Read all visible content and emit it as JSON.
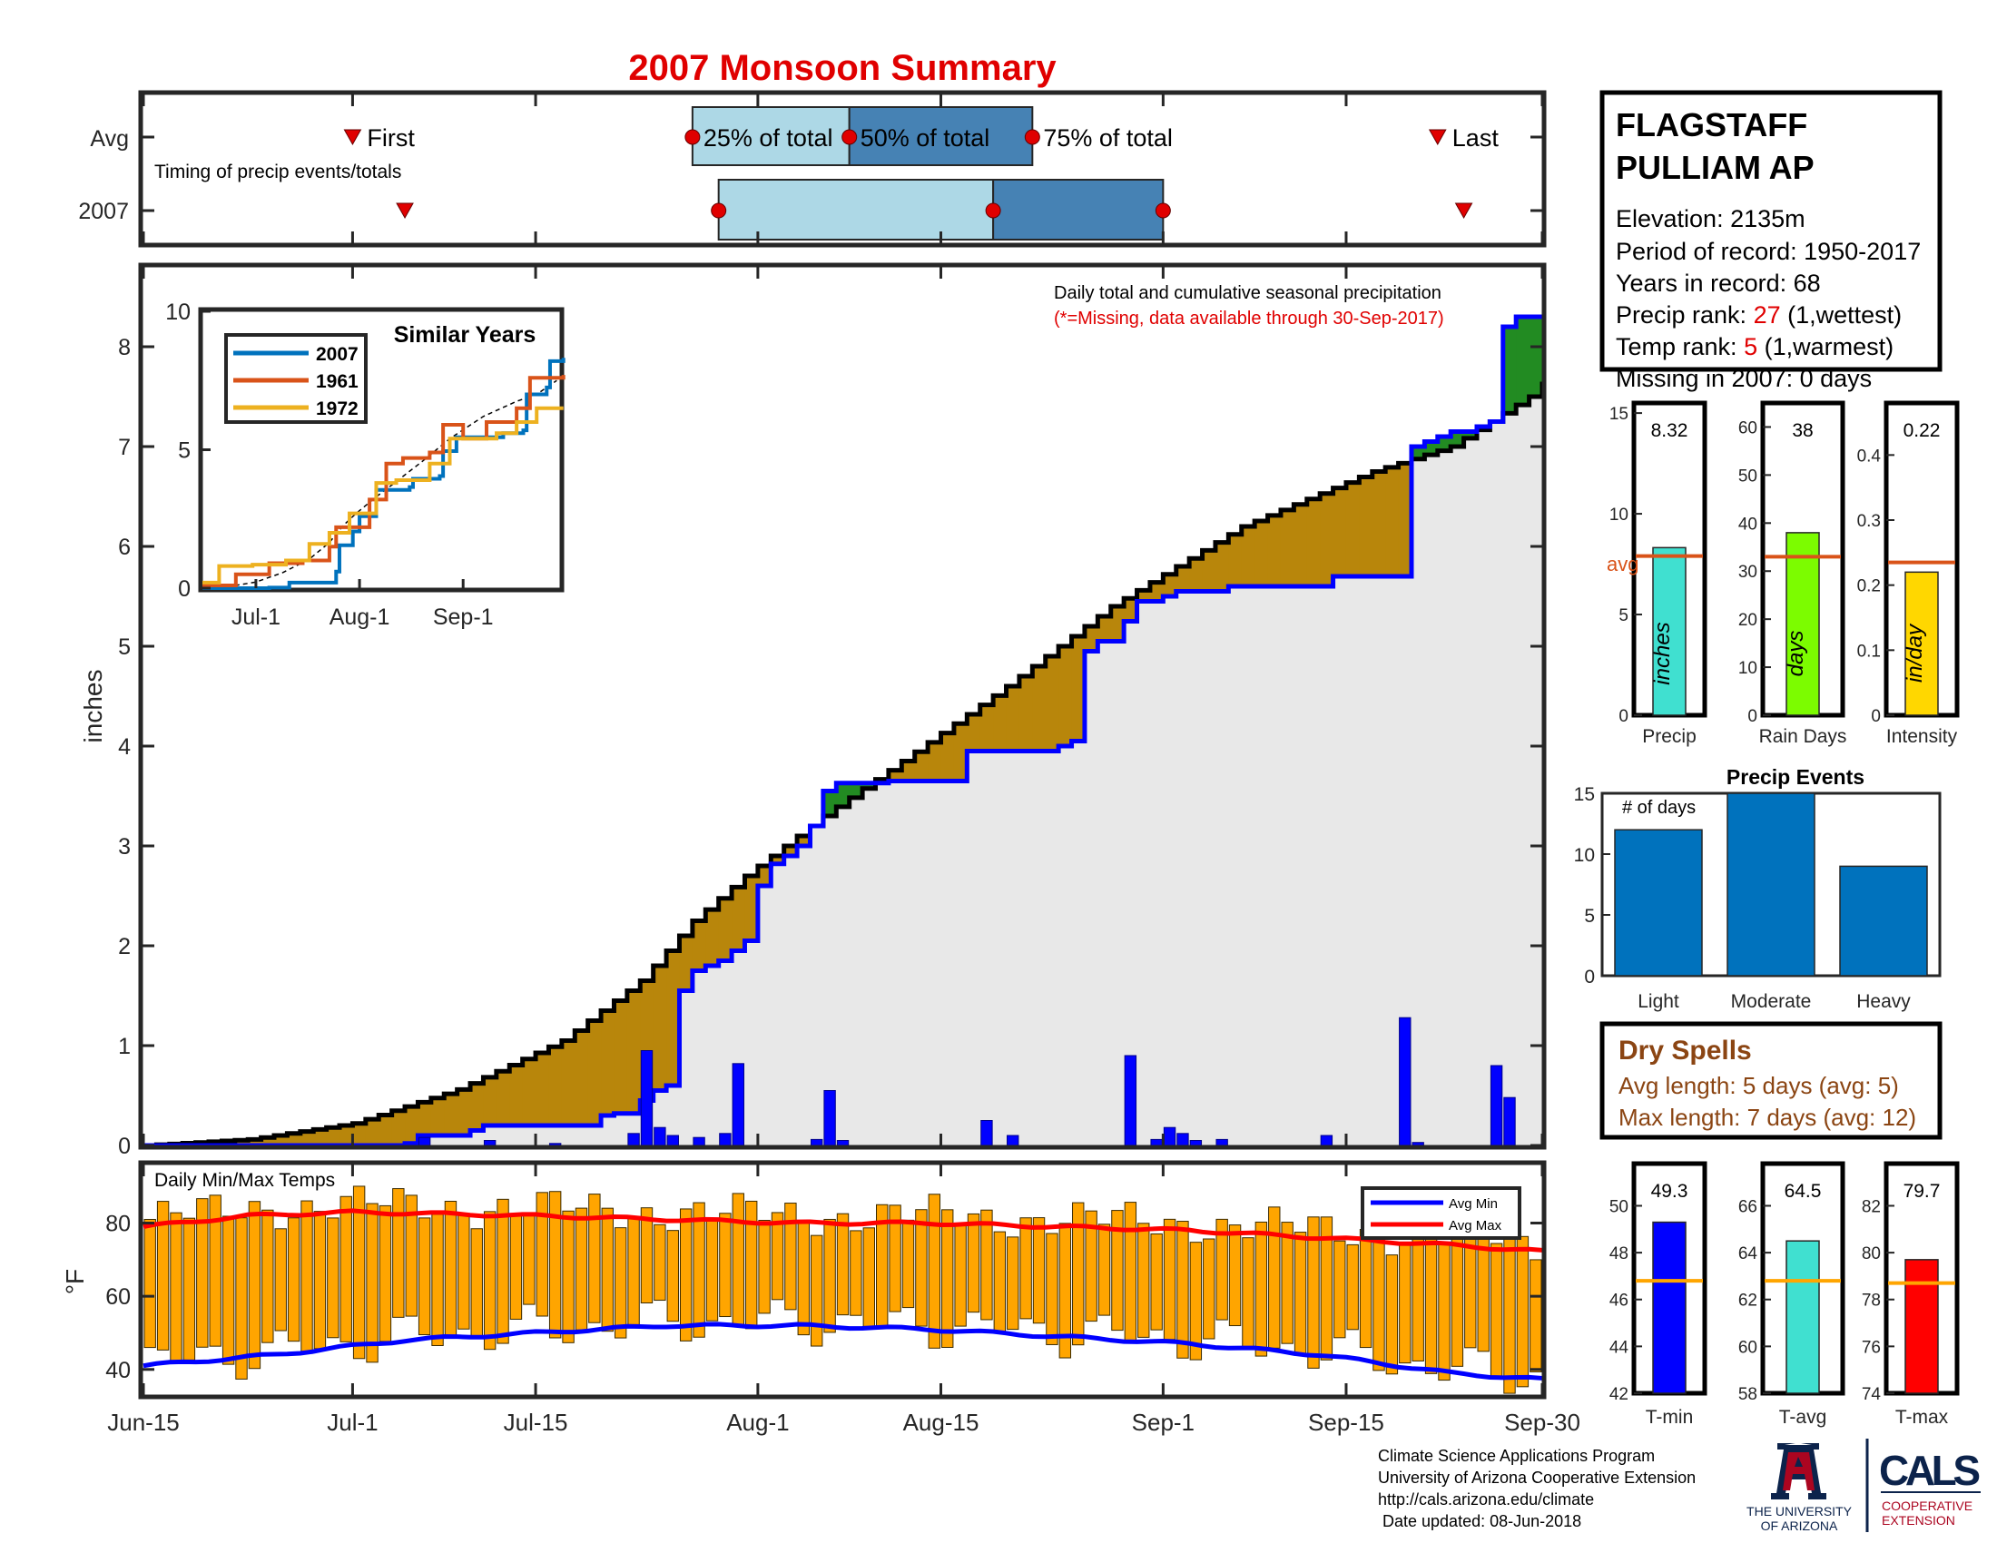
{
  "title": "2007 Monsoon Summary",
  "timing": {
    "row_labels": [
      "Avg",
      "2007"
    ],
    "note": "Timing of precip events/totals",
    "first_label": "First",
    "last_label": "Last",
    "p25_label": "25% of total",
    "p50_label": "50% of total",
    "p75_label": "75% of total",
    "avg": {
      "first": "Jul-01",
      "p25": "Jul-27",
      "p50": "Aug-08",
      "p75": "Aug-22",
      "last": "Sep-22"
    },
    "y2007": {
      "first": "Jul-05",
      "p25": "Jul-29",
      "p50": "Aug-19",
      "p75": "Sep-01",
      "last": "Sep-24"
    },
    "colors": {
      "light": "#add8e6",
      "dark": "#4682b4",
      "marker": "#e00000"
    }
  },
  "station": {
    "name_line1": "FLAGSTAFF",
    "name_line2": "PULLIAM AP",
    "elevation": "Elevation: 2135m",
    "period": "Period of record: 1950-2017",
    "years": "Years in record: 68",
    "precip_rank_label": "Precip rank:",
    "precip_rank_value": "27",
    "precip_rank_note": "(1,wettest)",
    "temp_rank_label": "Temp rank:",
    "temp_rank_value": "5",
    "temp_rank_note": "(1,warmest)",
    "missing": "Missing in 2007: 0 days"
  },
  "main_chart": {
    "note_line1": "Daily total and cumulative seasonal precipitation",
    "note_line2": "(*=Missing, data available through 30-Sep-2017)",
    "ylabel": "inches",
    "yticks": [
      "0",
      "1",
      "2",
      "3",
      "4",
      "5",
      "6",
      "7",
      "8"
    ],
    "xticks": [
      "Jun-15",
      "Jul-1",
      "Jul-15",
      "Aug-1",
      "Aug-15",
      "Sep-1",
      "Sep-15",
      "Sep-30"
    ]
  },
  "chart_data": [
    {
      "type": "area",
      "title": "Daily total and cumulative seasonal precipitation",
      "ylabel": "inches",
      "ylim": [
        0,
        8.8
      ],
      "x_range": [
        "Jun-15",
        "Sep-30"
      ],
      "series": [
        {
          "name": "average cumulative",
          "points": [
            [
              0,
              0
            ],
            [
              8,
              0.06
            ],
            [
              16,
              0.22
            ],
            [
              24,
              0.56
            ],
            [
              32,
              1.05
            ],
            [
              38,
              1.65
            ],
            [
              42,
              2.25
            ],
            [
              46,
              2.7
            ],
            [
              52,
              3.3
            ],
            [
              58,
              3.85
            ],
            [
              66,
              4.6
            ],
            [
              74,
              5.4
            ],
            [
              84,
              6.2
            ],
            [
              94,
              6.75
            ],
            [
              100,
              7.0
            ],
            [
              106,
              7.5
            ],
            [
              108,
              7.8
            ]
          ]
        },
        {
          "name": "2007 cumulative",
          "points": [
            [
              0,
              0
            ],
            [
              20,
              0.02
            ],
            [
              21,
              0.1
            ],
            [
              25,
              0.15
            ],
            [
              26,
              0.2
            ],
            [
              35,
              0.3
            ],
            [
              36,
              0.32
            ],
            [
              38,
              0.45
            ],
            [
              39,
              0.55
            ],
            [
              40,
              0.6
            ],
            [
              41,
              1.55
            ],
            [
              42,
              1.75
            ],
            [
              43,
              1.8
            ],
            [
              44,
              1.85
            ],
            [
              45,
              1.95
            ],
            [
              46,
              2.05
            ],
            [
              47,
              2.6
            ],
            [
              48,
              2.82
            ],
            [
              49,
              2.9
            ],
            [
              50,
              3.0
            ],
            [
              51,
              3.2
            ],
            [
              52,
              3.55
            ],
            [
              53,
              3.63
            ],
            [
              57,
              3.65
            ],
            [
              62,
              3.65
            ],
            [
              63,
              3.95
            ],
            [
              70,
              4.0
            ],
            [
              71,
              4.05
            ],
            [
              72,
              4.95
            ],
            [
              73,
              5.05
            ],
            [
              75,
              5.25
            ],
            [
              76,
              5.45
            ],
            [
              78,
              5.5
            ],
            [
              79,
              5.55
            ],
            [
              82,
              5.55
            ],
            [
              83,
              5.6
            ],
            [
              90,
              5.6
            ],
            [
              91,
              5.7
            ],
            [
              96,
              5.7
            ],
            [
              97,
              7.0
            ],
            [
              98,
              7.05
            ],
            [
              99,
              7.1
            ],
            [
              100,
              7.15
            ],
            [
              102,
              7.2
            ],
            [
              103,
              7.25
            ],
            [
              104,
              8.2
            ],
            [
              105,
              8.3
            ],
            [
              108,
              8.32
            ]
          ]
        },
        {
          "name": "daily precip",
          "points": [
            [
              21,
              0.08
            ],
            [
              26,
              0.05
            ],
            [
              31,
              0.02
            ],
            [
              37,
              0.12
            ],
            [
              38,
              0.95
            ],
            [
              39,
              0.18
            ],
            [
              40,
              0.1
            ],
            [
              42,
              0.08
            ],
            [
              44,
              0.12
            ],
            [
              45,
              0.82
            ],
            [
              51,
              0.06
            ],
            [
              52,
              0.55
            ],
            [
              53,
              0.05
            ],
            [
              64,
              0.25
            ],
            [
              66,
              0.1
            ],
            [
              75,
              0.9
            ],
            [
              77,
              0.06
            ],
            [
              78,
              0.18
            ],
            [
              79,
              0.12
            ],
            [
              80,
              0.05
            ],
            [
              82,
              0.06
            ],
            [
              90,
              0.1
            ],
            [
              96,
              1.28
            ],
            [
              97,
              0.03
            ],
            [
              103,
              0.8
            ],
            [
              104,
              0.48
            ]
          ]
        }
      ]
    },
    {
      "type": "line",
      "title": "Similar Years",
      "ylim": [
        0,
        10
      ],
      "yticks": [
        "0",
        "5",
        "10"
      ],
      "xticks": [
        "Jul-1",
        "Aug-1",
        "Sep-1"
      ],
      "series": [
        {
          "name": "2007",
          "color": "#0072bd",
          "points": [
            [
              0,
              0
            ],
            [
              20,
              0.02
            ],
            [
              26,
              0.2
            ],
            [
              40,
              0.6
            ],
            [
              41,
              1.55
            ],
            [
              45,
              2.05
            ],
            [
              47,
              2.6
            ],
            [
              52,
              3.55
            ],
            [
              62,
              3.65
            ],
            [
              63,
              3.95
            ],
            [
              71,
              4.05
            ],
            [
              72,
              4.95
            ],
            [
              76,
              5.45
            ],
            [
              90,
              5.6
            ],
            [
              96,
              5.7
            ],
            [
              97,
              7.0
            ],
            [
              103,
              7.25
            ],
            [
              104,
              8.2
            ],
            [
              108,
              8.32
            ]
          ]
        },
        {
          "name": "1961",
          "color": "#d95319",
          "points": [
            [
              0,
              0.1
            ],
            [
              10,
              0.5
            ],
            [
              20,
              0.9
            ],
            [
              30,
              1.0
            ],
            [
              38,
              1.5
            ],
            [
              40,
              2.2
            ],
            [
              50,
              3.2
            ],
            [
              55,
              4.5
            ],
            [
              60,
              4.7
            ],
            [
              68,
              4.9
            ],
            [
              72,
              5.9
            ],
            [
              78,
              5.4
            ],
            [
              85,
              6.0
            ],
            [
              94,
              6.5
            ],
            [
              98,
              7.6
            ],
            [
              108,
              7.7
            ]
          ]
        },
        {
          "name": "1972",
          "color": "#edb120",
          "points": [
            [
              0,
              0.2
            ],
            [
              5,
              0.8
            ],
            [
              15,
              0.85
            ],
            [
              25,
              1.0
            ],
            [
              32,
              1.6
            ],
            [
              38,
              2.0
            ],
            [
              44,
              2.7
            ],
            [
              52,
              3.8
            ],
            [
              58,
              3.9
            ],
            [
              68,
              4.5
            ],
            [
              74,
              5.4
            ],
            [
              88,
              5.6
            ],
            [
              94,
              6.0
            ],
            [
              100,
              6.5
            ],
            [
              108,
              6.5
            ]
          ]
        }
      ]
    },
    {
      "type": "bar",
      "categories": [
        "Precip",
        "Rain Days",
        "Intensity"
      ],
      "values": [
        8.32,
        38,
        0.22
      ],
      "value_labels": [
        "8.32",
        "38",
        "0.22"
      ],
      "units": [
        "inches",
        "days",
        "in/day"
      ],
      "averages": [
        7.9,
        33,
        0.235
      ],
      "ylims": [
        [
          0,
          15.5
        ],
        [
          0,
          65
        ],
        [
          0,
          0.48
        ]
      ],
      "yticks": [
        [
          "0",
          "5",
          "10",
          "15"
        ],
        [
          "0",
          "10",
          "20",
          "30",
          "40",
          "50",
          "60"
        ],
        [
          "0",
          "0.1",
          "0.2",
          "0.3",
          "0.4"
        ]
      ],
      "colors": [
        "#40e0d0",
        "#7cfc00",
        "#ffd700"
      ],
      "avg_label": "avg"
    },
    {
      "type": "bar",
      "title": "Precip Events",
      "ylabel": "# of days",
      "categories": [
        "Light",
        "Moderate",
        "Heavy"
      ],
      "values": [
        12,
        15,
        9
      ],
      "ylim": [
        0,
        15
      ],
      "yticks": [
        "0",
        "5",
        "10",
        "15"
      ],
      "color": "#0072bd"
    },
    {
      "type": "bar",
      "title": "Daily Min/Max Temps",
      "ylabel": "°F",
      "ylim": [
        33,
        96
      ],
      "yticks": [
        "40",
        "60",
        "80"
      ],
      "series": [
        {
          "name": "Avg Min",
          "color": "#0000ff",
          "points": [
            [
              0,
              41
            ],
            [
              10,
              44
            ],
            [
              20,
              48
            ],
            [
              30,
              50
            ],
            [
              40,
              52
            ],
            [
              50,
              52
            ],
            [
              60,
              51
            ],
            [
              70,
              49
            ],
            [
              80,
              47
            ],
            [
              90,
              44
            ],
            [
              100,
              39
            ],
            [
              108,
              37
            ]
          ]
        },
        {
          "name": "Avg Max",
          "color": "#ff0000",
          "points": [
            [
              0,
              79
            ],
            [
              8,
              82
            ],
            [
              16,
              83
            ],
            [
              30,
              82
            ],
            [
              40,
              81
            ],
            [
              50,
              80
            ],
            [
              60,
              80
            ],
            [
              70,
              79
            ],
            [
              80,
              78
            ],
            [
              90,
              76
            ],
            [
              100,
              74
            ],
            [
              108,
              72
            ]
          ]
        }
      ]
    },
    {
      "type": "bar",
      "categories": [
        "T-min",
        "T-avg",
        "T-max"
      ],
      "values": [
        49.3,
        64.5,
        79.7
      ],
      "value_labels": [
        "49.3",
        "64.5",
        "79.7"
      ],
      "averages": [
        46.8,
        62.8,
        78.7
      ],
      "ylims": [
        [
          42,
          51.8
        ],
        [
          58,
          67.8
        ],
        [
          74,
          83.8
        ]
      ],
      "yticks": [
        [
          "42",
          "44",
          "46",
          "48",
          "50"
        ],
        [
          "58",
          "60",
          "62",
          "64",
          "66"
        ],
        [
          "74",
          "76",
          "78",
          "80",
          "82"
        ]
      ],
      "colors": [
        "#0000ff",
        "#40e0d0",
        "#ff0000"
      ]
    }
  ],
  "dry_spells": {
    "title": "Dry Spells",
    "avg": "Avg length: 5 days (avg: 5)",
    "max": "Max length: 7 days (avg: 12)"
  },
  "footer": {
    "line1": "Climate Science Applications Program",
    "line2": "University of Arizona Cooperative Extension",
    "line3": "http://cals.arizona.edu/climate",
    "line4": " Date updated: 08-Jun-2018",
    "ua_line1": "THE UNIVERSITY",
    "ua_line2": "OF ARIZONA",
    "cals": "CALS",
    "cals_sub1": "COOPERATIVE",
    "cals_sub2": "EXTENSION"
  }
}
